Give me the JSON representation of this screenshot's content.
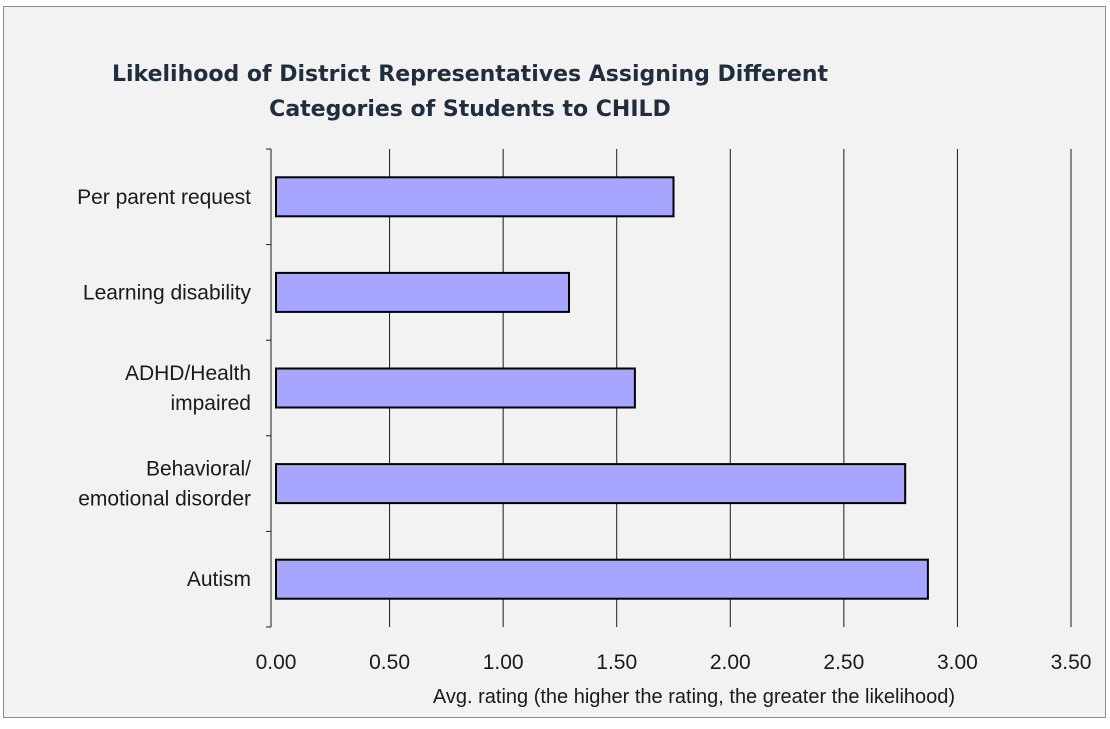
{
  "chart_data": {
    "type": "bar",
    "orientation": "horizontal",
    "title_lines": [
      "Likelihood of District Representatives Assigning Different",
      "Categories of Students to CHILD"
    ],
    "categories": [
      "Per parent request",
      "Learning disability",
      "ADHD/Health impaired",
      "Behavioral/ emotional disorder",
      "Autism"
    ],
    "category_label_lines": [
      [
        "Per parent request"
      ],
      [
        "Learning disability"
      ],
      [
        "ADHD/Health",
        "impaired"
      ],
      [
        "Behavioral/",
        "emotional disorder"
      ],
      [
        "Autism"
      ]
    ],
    "values": [
      1.75,
      1.29,
      1.58,
      2.77,
      2.87
    ],
    "xlabel": "Avg. rating (the higher the rating, the greater the likelihood)",
    "ylabel": "",
    "xlim": [
      0,
      3.5
    ],
    "xticks": [
      "0.00",
      "0.50",
      "1.00",
      "1.50",
      "2.00",
      "2.50",
      "3.00",
      "3.50"
    ],
    "grid": "vertical",
    "legend": "none",
    "bar_color": "#a6a6ff",
    "bar_border_color": "#000000"
  }
}
